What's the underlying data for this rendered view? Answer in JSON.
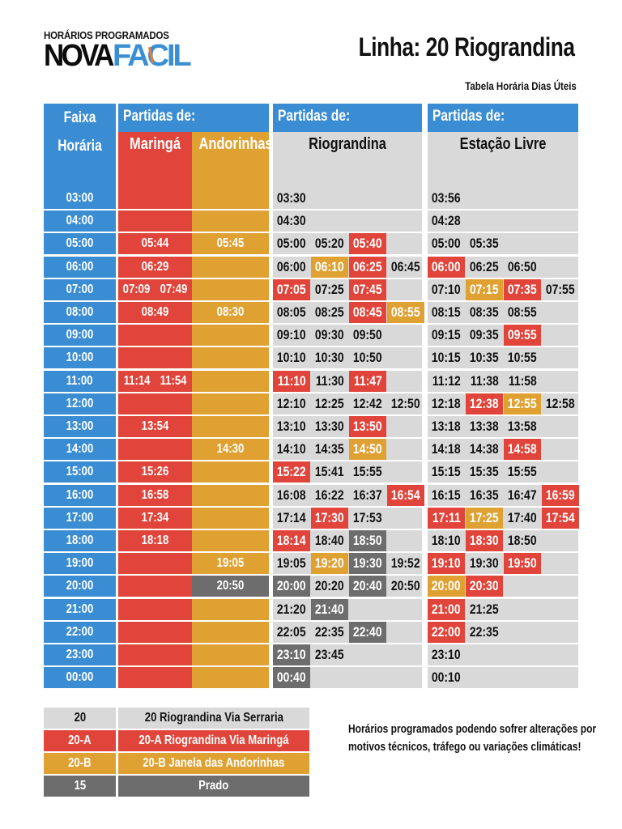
{
  "colors": {
    "blue": "#3b8dd3",
    "red": "#e0443a",
    "yellow": "#e0a133",
    "gray": "#6d6d6d",
    "light": "#d9d9d9"
  },
  "logo": {
    "top_text": "HORÁRIOS PROGRAMADOS",
    "brand_a": "NOVA",
    "brand_b": "FACIL",
    "icon": "clock-icon"
  },
  "header": {
    "title": "Linha: 20 Riograndina",
    "subtitle": "Tabela Horária Dias Úteis"
  },
  "table": {
    "hour_header": [
      "Faixa",
      "Horária"
    ],
    "departures_label": "Partidas de:",
    "origins": {
      "maringa": "Maringá",
      "andorinhas": "Andorinhas",
      "riograndina": "Riograndina",
      "estacao": "Estação Livre"
    },
    "hours": [
      "03:00",
      "04:00",
      "05:00",
      "06:00",
      "07:00",
      "08:00",
      "09:00",
      "10:00",
      "11:00",
      "12:00",
      "13:00",
      "14:00",
      "15:00",
      "16:00",
      "17:00",
      "18:00",
      "19:00",
      "20:00",
      "21:00",
      "22:00",
      "23:00",
      "00:00"
    ],
    "maringa": [
      [],
      [],
      [
        "05:44"
      ],
      [
        "06:29"
      ],
      [
        "07:09",
        "07:49"
      ],
      [
        "08:49"
      ],
      [],
      [],
      [
        "11:14",
        "11:54"
      ],
      [],
      [
        "13:54"
      ],
      [],
      [
        "15:26"
      ],
      [
        "16:58"
      ],
      [
        "17:34"
      ],
      [
        "18:18"
      ],
      [],
      [],
      [],
      [],
      [],
      []
    ],
    "andorinhas": [
      {
        "t": "",
        "c": ""
      },
      {
        "t": "",
        "c": ""
      },
      {
        "t": "05:45",
        "c": ""
      },
      {
        "t": "",
        "c": ""
      },
      {
        "t": "",
        "c": ""
      },
      {
        "t": "08:30",
        "c": ""
      },
      {
        "t": "",
        "c": ""
      },
      {
        "t": "",
        "c": ""
      },
      {
        "t": "",
        "c": ""
      },
      {
        "t": "",
        "c": ""
      },
      {
        "t": "",
        "c": ""
      },
      {
        "t": "14:30",
        "c": ""
      },
      {
        "t": "",
        "c": ""
      },
      {
        "t": "",
        "c": ""
      },
      {
        "t": "",
        "c": ""
      },
      {
        "t": "",
        "c": ""
      },
      {
        "t": "19:05",
        "c": ""
      },
      {
        "t": "20:50",
        "c": "g"
      },
      {
        "t": "",
        "c": ""
      },
      {
        "t": "",
        "c": ""
      },
      {
        "t": "",
        "c": ""
      },
      {
        "t": "",
        "c": ""
      }
    ],
    "riograndina": [
      [
        {
          "t": "03:30",
          "c": ""
        }
      ],
      [
        {
          "t": "04:30",
          "c": ""
        }
      ],
      [
        {
          "t": "05:00",
          "c": ""
        },
        {
          "t": "05:20",
          "c": ""
        },
        {
          "t": "05:40",
          "c": "r"
        }
      ],
      [
        {
          "t": "06:00",
          "c": ""
        },
        {
          "t": "06:10",
          "c": "y"
        },
        {
          "t": "06:25",
          "c": "r"
        },
        {
          "t": "06:45",
          "c": ""
        }
      ],
      [
        {
          "t": "07:05",
          "c": "r"
        },
        {
          "t": "07:25",
          "c": ""
        },
        {
          "t": "07:45",
          "c": "r"
        }
      ],
      [
        {
          "t": "08:05",
          "c": ""
        },
        {
          "t": "08:25",
          "c": ""
        },
        {
          "t": "08:45",
          "c": "r"
        },
        {
          "t": "08:55",
          "c": "y"
        }
      ],
      [
        {
          "t": "09:10",
          "c": ""
        },
        {
          "t": "09:30",
          "c": ""
        },
        {
          "t": "09:50",
          "c": ""
        }
      ],
      [
        {
          "t": "10:10",
          "c": ""
        },
        {
          "t": "10:30",
          "c": ""
        },
        {
          "t": "10:50",
          "c": ""
        }
      ],
      [
        {
          "t": "11:10",
          "c": "r"
        },
        {
          "t": "11:30",
          "c": ""
        },
        {
          "t": "11:47",
          "c": "r"
        }
      ],
      [
        {
          "t": "12:10",
          "c": ""
        },
        {
          "t": "12:25",
          "c": ""
        },
        {
          "t": "12:42",
          "c": ""
        },
        {
          "t": "12:50",
          "c": ""
        }
      ],
      [
        {
          "t": "13:10",
          "c": ""
        },
        {
          "t": "13:30",
          "c": ""
        },
        {
          "t": "13:50",
          "c": "r"
        }
      ],
      [
        {
          "t": "14:10",
          "c": ""
        },
        {
          "t": "14:35",
          "c": ""
        },
        {
          "t": "14:50",
          "c": "y"
        }
      ],
      [
        {
          "t": "15:22",
          "c": "r"
        },
        {
          "t": "15:41",
          "c": ""
        },
        {
          "t": "15:55",
          "c": ""
        }
      ],
      [
        {
          "t": "16:08",
          "c": ""
        },
        {
          "t": "16:22",
          "c": ""
        },
        {
          "t": "16:37",
          "c": ""
        },
        {
          "t": "16:54",
          "c": "r"
        }
      ],
      [
        {
          "t": "17:14",
          "c": ""
        },
        {
          "t": "17:30",
          "c": "r"
        },
        {
          "t": "17:53",
          "c": ""
        }
      ],
      [
        {
          "t": "18:14",
          "c": "r"
        },
        {
          "t": "18:40",
          "c": ""
        },
        {
          "t": "18:50",
          "c": "g"
        }
      ],
      [
        {
          "t": "19:05",
          "c": ""
        },
        {
          "t": "19:20",
          "c": "y"
        },
        {
          "t": "19:30",
          "c": "g"
        },
        {
          "t": "19:52",
          "c": ""
        }
      ],
      [
        {
          "t": "20:00",
          "c": "g"
        },
        {
          "t": "20:20",
          "c": ""
        },
        {
          "t": "20:40",
          "c": "g"
        },
        {
          "t": "20:50",
          "c": ""
        }
      ],
      [
        {
          "t": "21:20",
          "c": ""
        },
        {
          "t": "21:40",
          "c": "g"
        }
      ],
      [
        {
          "t": "22:05",
          "c": ""
        },
        {
          "t": "22:35",
          "c": ""
        },
        {
          "t": "22:40",
          "c": "g"
        }
      ],
      [
        {
          "t": "23:10",
          "c": "g"
        },
        {
          "t": "23:45",
          "c": ""
        }
      ],
      [
        {
          "t": "00:40",
          "c": "g"
        }
      ]
    ],
    "estacao": [
      [
        {
          "t": "03:56",
          "c": ""
        }
      ],
      [
        {
          "t": "04:28",
          "c": ""
        }
      ],
      [
        {
          "t": "05:00",
          "c": ""
        },
        {
          "t": "05:35",
          "c": ""
        }
      ],
      [
        {
          "t": "06:00",
          "c": "r"
        },
        {
          "t": "06:25",
          "c": ""
        },
        {
          "t": "06:50",
          "c": ""
        }
      ],
      [
        {
          "t": "07:10",
          "c": ""
        },
        {
          "t": "07:15",
          "c": "y"
        },
        {
          "t": "07:35",
          "c": "r"
        },
        {
          "t": "07:55",
          "c": ""
        }
      ],
      [
        {
          "t": "08:15",
          "c": ""
        },
        {
          "t": "08:35",
          "c": ""
        },
        {
          "t": "08:55",
          "c": ""
        }
      ],
      [
        {
          "t": "09:15",
          "c": ""
        },
        {
          "t": "09:35",
          "c": ""
        },
        {
          "t": "09:55",
          "c": "r"
        }
      ],
      [
        {
          "t": "10:15",
          "c": ""
        },
        {
          "t": "10:35",
          "c": ""
        },
        {
          "t": "10:55",
          "c": ""
        }
      ],
      [
        {
          "t": "11:12",
          "c": ""
        },
        {
          "t": "11:38",
          "c": ""
        },
        {
          "t": "11:58",
          "c": ""
        }
      ],
      [
        {
          "t": "12:18",
          "c": ""
        },
        {
          "t": "12:38",
          "c": "r"
        },
        {
          "t": "12:55",
          "c": "y"
        },
        {
          "t": "12:58",
          "c": ""
        }
      ],
      [
        {
          "t": "13:18",
          "c": ""
        },
        {
          "t": "13:38",
          "c": ""
        },
        {
          "t": "13:58",
          "c": ""
        }
      ],
      [
        {
          "t": "14:18",
          "c": ""
        },
        {
          "t": "14:38",
          "c": ""
        },
        {
          "t": "14:58",
          "c": "r"
        }
      ],
      [
        {
          "t": "15:15",
          "c": ""
        },
        {
          "t": "15:35",
          "c": ""
        },
        {
          "t": "15:55",
          "c": ""
        }
      ],
      [
        {
          "t": "16:15",
          "c": ""
        },
        {
          "t": "16:35",
          "c": ""
        },
        {
          "t": "16:47",
          "c": ""
        },
        {
          "t": "16:59",
          "c": "r"
        }
      ],
      [
        {
          "t": "17:11",
          "c": "r"
        },
        {
          "t": "17:25",
          "c": "y"
        },
        {
          "t": "17:40",
          "c": ""
        },
        {
          "t": "17:54",
          "c": "r"
        }
      ],
      [
        {
          "t": "18:10",
          "c": ""
        },
        {
          "t": "18:30",
          "c": "r"
        },
        {
          "t": "18:50",
          "c": ""
        }
      ],
      [
        {
          "t": "19:10",
          "c": "r"
        },
        {
          "t": "19:30",
          "c": ""
        },
        {
          "t": "19:50",
          "c": "r"
        }
      ],
      [
        {
          "t": "20:00",
          "c": "y"
        },
        {
          "t": "20:30",
          "c": "r"
        }
      ],
      [
        {
          "t": "21:00",
          "c": "r"
        },
        {
          "t": "21:25",
          "c": ""
        }
      ],
      [
        {
          "t": "22:00",
          "c": "r"
        },
        {
          "t": "22:35",
          "c": ""
        }
      ],
      [
        {
          "t": "23:10",
          "c": ""
        }
      ],
      [
        {
          "t": "00:10",
          "c": ""
        }
      ]
    ]
  },
  "legend": [
    {
      "code": "20",
      "name": "20 Riograndina Via Serraria",
      "style": "light"
    },
    {
      "code": "20-A",
      "name": "20-A Riograndina Via Maringá",
      "style": "red"
    },
    {
      "code": "20-B",
      "name": "20-B Janela das Andorinhas",
      "style": "yellow"
    },
    {
      "code": "15",
      "name": "Prado",
      "style": "gray"
    }
  ],
  "note": [
    "Horários programados podendo sofrer alterações por",
    "motivos técnicos, tráfego ou variações climáticas!"
  ]
}
